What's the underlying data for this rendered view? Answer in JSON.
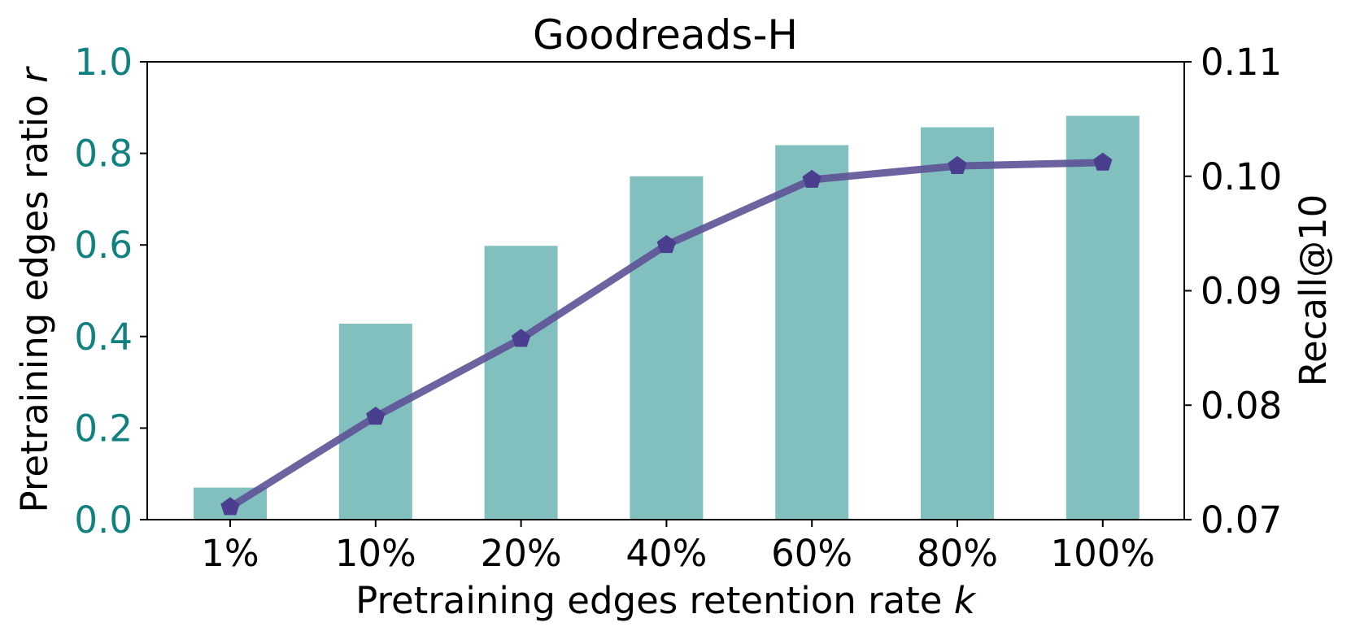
{
  "chart_data": {
    "type": "bar",
    "title": "Goodreads-H",
    "xlabel": "Pretraining edges retention rate",
    "xlabel_var": "k",
    "ylabel_left": "Pretraining edges ratio",
    "ylabel_left_var": "r",
    "ylabel_right": "Recall@10",
    "categories": [
      "1%",
      "10%",
      "20%",
      "40%",
      "60%",
      "80%",
      "100%"
    ],
    "ylim_left": [
      0,
      1.0
    ],
    "yticks_left": [
      "0.0",
      "0.2",
      "0.4",
      "0.6",
      "0.8",
      "1.0"
    ],
    "ylim_right": [
      0.07,
      0.11
    ],
    "yticks_right": [
      "0.07",
      "0.08",
      "0.09",
      "0.10",
      "0.11"
    ],
    "grid": false,
    "series": [
      {
        "type": "bar",
        "axis": "left",
        "color": "#82bfbf",
        "values": [
          0.07,
          0.428,
          0.598,
          0.75,
          0.818,
          0.857,
          0.882
        ]
      },
      {
        "type": "line",
        "axis": "right",
        "color": "#5c5296",
        "marker": "pentagon",
        "values": [
          0.0711,
          0.079,
          0.0858,
          0.094,
          0.0997,
          0.1009,
          0.1012
        ]
      }
    ],
    "left_axis_color": "#118080",
    "right_axis_color": "#000000"
  }
}
